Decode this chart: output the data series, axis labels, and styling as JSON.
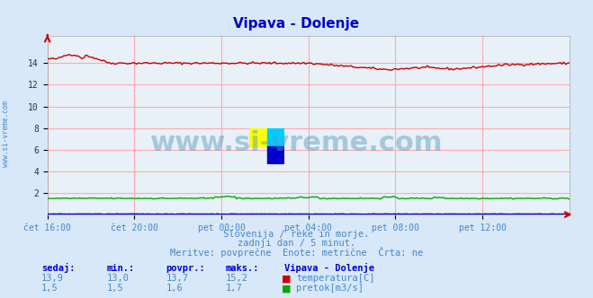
{
  "title": "Vipava - Dolenje",
  "title_color": "#0000cc",
  "bg_color": "#d8e8f8",
  "plot_bg_color": "#e8f0f8",
  "grid_color": "#ffaaaa",
  "x_labels": [
    "čet 16:00",
    "čet 20:00",
    "pet 00:00",
    "pet 04:00",
    "pet 08:00",
    "pet 12:00"
  ],
  "x_ticks_norm": [
    0.0,
    0.1667,
    0.3333,
    0.5,
    0.6667,
    0.8333
  ],
  "ylim": [
    0,
    16.533
  ],
  "yticks": [
    0,
    2,
    4,
    6,
    8,
    10,
    12,
    14
  ],
  "ylabel_color": "#333333",
  "subtitle1": "Slovenija / reke in morje.",
  "subtitle2": "zadnji dan / 5 minut.",
  "subtitle3": "Meritve: povprečne  Enote: metrične  Črta: ne",
  "subtitle_color": "#4488cc",
  "watermark_text": "www.si-vreme.com",
  "watermark_color": "#5599bb",
  "watermark_alpha": 0.45,
  "left_label": "www.si-vreme.com",
  "left_label_color": "#4488cc",
  "stats_labels": [
    "sedaj:",
    "min.:",
    "povpr.:",
    "maks.:"
  ],
  "stats_color": "#0000cc",
  "temp_stats": [
    "13,9",
    "13,0",
    "13,7",
    "15,2"
  ],
  "flow_stats": [
    "1,5",
    "1,5",
    "1,6",
    "1,7"
  ],
  "legend_title": "Vipava - Dolenje",
  "legend_temp": "temperatura[C]",
  "legend_flow": "pretok[m3/s]",
  "temp_color": "#cc0000",
  "flow_color": "#00aa00",
  "blue_line_color": "#0000cc",
  "n_points": 288
}
